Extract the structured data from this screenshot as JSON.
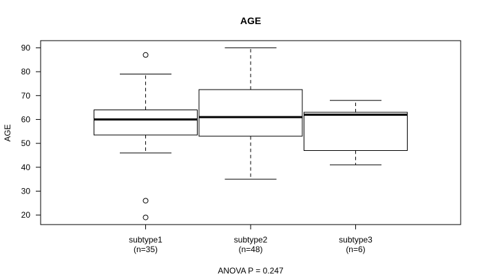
{
  "chart_data": {
    "type": "boxplot",
    "title": "AGE",
    "ylabel": "AGE",
    "xlabel": "",
    "ylim": [
      16,
      93
    ],
    "yticks": [
      20,
      30,
      40,
      50,
      60,
      70,
      80,
      90
    ],
    "grid": false,
    "groups": [
      {
        "name": "subtype1",
        "n_label": "(n=35)",
        "whisker_low": 46,
        "q1": 53.5,
        "median": 60,
        "q3": 64,
        "whisker_high": 79,
        "outliers": [
          87,
          26,
          19
        ]
      },
      {
        "name": "subtype2",
        "n_label": "(n=48)",
        "whisker_low": 35,
        "q1": 53,
        "median": 61,
        "q3": 72.5,
        "whisker_high": 90,
        "outliers": []
      },
      {
        "name": "subtype3",
        "n_label": "(n=6)",
        "whisker_low": 41,
        "q1": 47,
        "median": 62,
        "q3": 63,
        "whisker_high": 68,
        "outliers": []
      }
    ],
    "annotation": "ANOVA P = 0.247"
  }
}
